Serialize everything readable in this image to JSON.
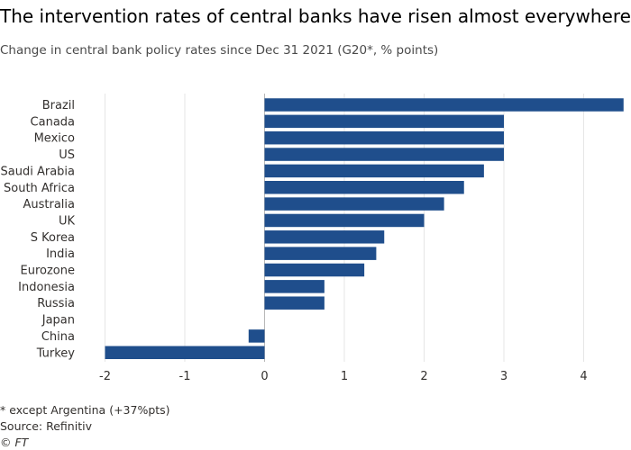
{
  "header": {
    "title": "The intervention rates of central banks have risen almost everywhere",
    "subtitle": "Change in central bank policy rates since Dec 31 2021 (G20*, % points)"
  },
  "footer": {
    "note": "* except Argentina (+37%pts)",
    "source": "Source: Refinitiv",
    "credit": "© FT"
  },
  "colors": {
    "bar": "#1f4e8c",
    "grid": "#e6e6e6",
    "zero_line": "#b8b8b8",
    "text": "#33302e"
  },
  "chart_data": {
    "type": "bar",
    "orientation": "horizontal",
    "title": "The intervention rates of central banks have risen almost everywhere",
    "subtitle": "Change in central bank policy rates since Dec 31 2021 (G20*, % points)",
    "categories": [
      "Brazil",
      "Canada",
      "Mexico",
      "US",
      "Saudi Arabia",
      "South Africa",
      "Australia",
      "UK",
      "S Korea",
      "India",
      "Eurozone",
      "Indonesia",
      "Russia",
      "Japan",
      "China",
      "Turkey"
    ],
    "values": [
      4.5,
      3.0,
      3.0,
      3.0,
      2.75,
      2.5,
      2.25,
      2.0,
      1.5,
      1.4,
      1.25,
      0.75,
      0.75,
      0,
      -0.2,
      -2.0
    ],
    "xlim": [
      -2.2,
      4.5
    ],
    "xticks": [
      -2,
      -1,
      0,
      1,
      2,
      3,
      4
    ],
    "xlabel": "",
    "ylabel": "",
    "grid": "vertical",
    "legend": "none"
  }
}
